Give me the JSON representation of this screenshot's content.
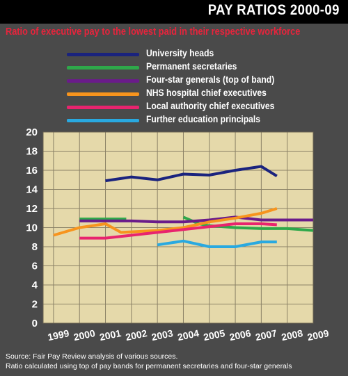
{
  "header": {
    "title": "PAY RATIOS 2000-09",
    "subtitle": "Ratio of executive pay to the lowest paid in their respective workforce"
  },
  "footer": {
    "source": "Source: Fair Pay Review analysis of various sources.",
    "note": "Ratio calculated using top of pay bands for permanent secretaries and four-star generals"
  },
  "chart_data": {
    "type": "line",
    "categories": [
      "1999",
      "2000",
      "2001",
      "2002",
      "2003",
      "2004",
      "2005",
      "2006",
      "2007",
      "2008",
      "2009"
    ],
    "ylim": [
      0,
      20
    ],
    "yticks": [
      0,
      2,
      4,
      6,
      8,
      10,
      12,
      14,
      16,
      18,
      20
    ],
    "grid": true,
    "legend_placement": "top-left",
    "plot_background": "#e5d9aa",
    "series": [
      {
        "name": "University heads",
        "color": "#1a237e",
        "points": [
          [
            2001,
            14.9
          ],
          [
            2002,
            15.3
          ],
          [
            2003,
            15.0
          ],
          [
            2004,
            15.6
          ],
          [
            2005,
            15.5
          ],
          [
            2006,
            16.0
          ],
          [
            2007,
            16.4
          ],
          [
            2007.6,
            15.4
          ]
        ]
      },
      {
        "name": "Permanent secretaries",
        "color": "#2ea84a",
        "points": [
          [
            2000,
            10.9
          ],
          [
            2001,
            10.9
          ],
          [
            2001.8,
            10.9
          ],
          null,
          [
            2004,
            11.1
          ],
          [
            2004.6,
            10.4
          ],
          [
            2005,
            10.2
          ],
          [
            2006,
            10.0
          ],
          [
            2007,
            9.9
          ],
          [
            2008,
            9.9
          ],
          [
            2009,
            9.7
          ]
        ]
      },
      {
        "name": "Four-star generals (top of band)",
        "color": "#6a1b8a",
        "points": [
          [
            2000,
            10.7
          ],
          [
            2001,
            10.7
          ],
          [
            2002,
            10.7
          ],
          [
            2003,
            10.6
          ],
          [
            2004,
            10.6
          ],
          [
            2005,
            10.8
          ],
          [
            2006,
            11.1
          ],
          [
            2007,
            10.8
          ],
          [
            2008,
            10.8
          ],
          [
            2009,
            10.8
          ]
        ]
      },
      {
        "name": "NHS hospital chief executives",
        "color": "#f7941d",
        "points": [
          [
            1999,
            9.2
          ],
          [
            2000,
            10.0
          ],
          [
            2001,
            10.4
          ],
          [
            2001.6,
            9.5
          ],
          [
            2003,
            9.7
          ],
          [
            2004,
            10.0
          ],
          [
            2005,
            10.6
          ],
          [
            2006,
            11.0
          ],
          [
            2007,
            11.5
          ],
          [
            2007.6,
            12.0
          ]
        ]
      },
      {
        "name": "Local authority chief executives",
        "color": "#e8246e",
        "points": [
          [
            2000,
            8.9
          ],
          [
            2001,
            8.9
          ],
          [
            2002,
            9.2
          ],
          [
            2003,
            9.5
          ],
          [
            2004,
            9.8
          ],
          [
            2005,
            10.1
          ],
          [
            2006,
            10.4
          ],
          [
            2007,
            10.4
          ],
          [
            2007.6,
            10.3
          ]
        ]
      },
      {
        "name": "Further education principals",
        "color": "#29a9e0",
        "points": [
          [
            2003,
            8.2
          ],
          [
            2004,
            8.6
          ],
          [
            2005,
            8.0
          ],
          [
            2006,
            8.0
          ],
          [
            2007,
            8.5
          ],
          [
            2007.6,
            8.5
          ]
        ]
      }
    ]
  }
}
